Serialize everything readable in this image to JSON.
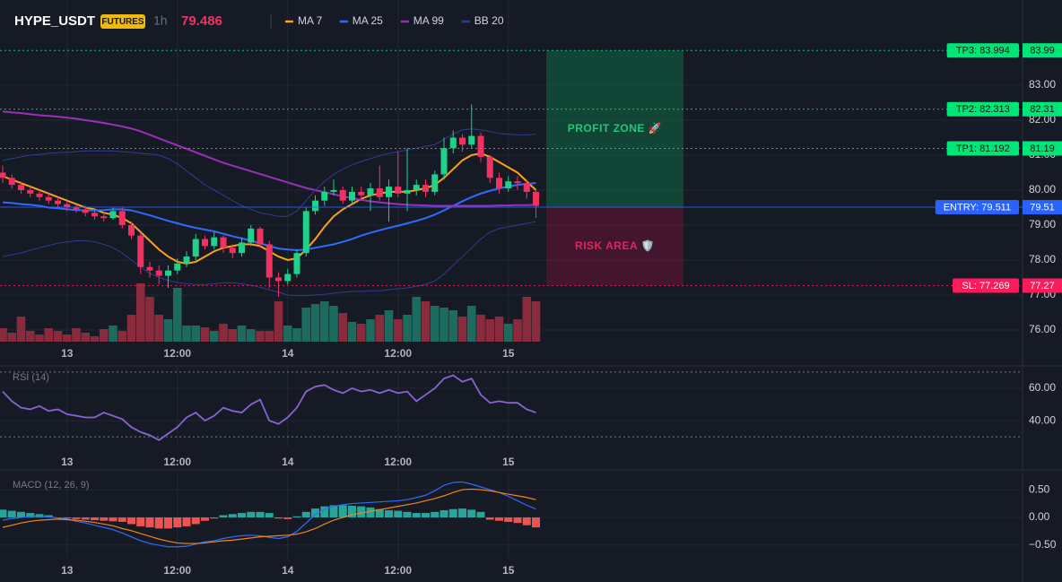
{
  "header": {
    "symbol": "HYPE_USDT",
    "badge": "FUTURES",
    "interval": "1h",
    "price": "79.486"
  },
  "chart_data": [
    {
      "type": "candlestick",
      "categories": [
        null,
        null,
        null,
        null,
        null,
        null,
        null,
        "13",
        null,
        null,
        null,
        null,
        null,
        null,
        null,
        null,
        null,
        null,
        null,
        "12:00",
        null,
        null,
        null,
        null,
        null,
        null,
        null,
        null,
        null,
        null,
        null,
        "14",
        null,
        null,
        null,
        null,
        null,
        null,
        null,
        null,
        null,
        null,
        null,
        "12:00",
        null,
        null,
        null,
        null,
        null,
        null,
        null,
        null,
        null,
        null,
        null,
        "15",
        null,
        null,
        null
      ],
      "open": [
        80.5,
        80.35,
        80.15,
        80.0,
        79.9,
        79.8,
        79.7,
        79.6,
        79.5,
        79.45,
        79.35,
        79.25,
        79.2,
        79.4,
        79.0,
        78.7,
        77.8,
        77.7,
        77.55,
        77.7,
        77.9,
        78.1,
        78.6,
        78.4,
        78.65,
        78.35,
        78.2,
        78.5,
        78.9,
        78.45,
        77.5,
        77.4,
        77.6,
        78.2,
        79.4,
        79.7,
        79.95,
        80.0,
        79.7,
        79.95,
        79.85,
        80.05,
        79.8,
        80.1,
        79.9,
        80.0,
        80.15,
        79.95,
        80.45,
        81.2,
        81.5,
        81.3,
        81.55,
        80.95,
        80.35,
        80.05,
        80.25,
        80.2,
        79.95
      ],
      "high": [
        80.7,
        80.45,
        80.25,
        80.1,
        80.0,
        79.9,
        79.8,
        79.7,
        79.6,
        79.55,
        79.45,
        79.35,
        79.5,
        79.5,
        79.1,
        78.8,
        77.95,
        77.85,
        77.85,
        78.05,
        78.25,
        78.75,
        78.7,
        78.8,
        78.7,
        78.45,
        78.65,
        79.0,
        78.95,
        78.55,
        77.65,
        77.75,
        78.3,
        79.5,
        79.85,
        80.1,
        80.3,
        80.1,
        80.1,
        80.1,
        80.2,
        80.7,
        80.3,
        81.1,
        81.2,
        80.3,
        80.3,
        80.55,
        81.5,
        81.7,
        81.6,
        82.45,
        81.65,
        81.0,
        80.5,
        80.4,
        80.4,
        80.3,
        80.05
      ],
      "low": [
        80.2,
        80.05,
        79.9,
        79.8,
        79.7,
        79.6,
        79.5,
        79.4,
        79.35,
        79.25,
        79.15,
        79.1,
        79.15,
        78.9,
        78.6,
        77.6,
        77.5,
        77.3,
        77.2,
        77.6,
        77.8,
        78.0,
        78.3,
        78.3,
        78.2,
        78.05,
        78.1,
        78.4,
        78.35,
        77.2,
        76.95,
        77.3,
        77.5,
        78.1,
        79.3,
        79.55,
        79.85,
        79.6,
        79.6,
        79.7,
        79.4,
        79.7,
        79.1,
        79.8,
        79.4,
        79.85,
        79.8,
        79.85,
        80.3,
        81.05,
        81.1,
        81.2,
        80.8,
        80.2,
        79.9,
        79.95,
        80.0,
        79.75,
        79.2
      ],
      "close": [
        80.35,
        80.15,
        80.0,
        79.9,
        79.8,
        79.7,
        79.6,
        79.5,
        79.45,
        79.35,
        79.25,
        79.2,
        79.4,
        79.0,
        78.7,
        77.8,
        77.7,
        77.55,
        77.7,
        77.9,
        78.1,
        78.6,
        78.4,
        78.65,
        78.35,
        78.2,
        78.5,
        78.9,
        78.45,
        77.5,
        77.4,
        77.6,
        78.2,
        79.4,
        79.7,
        79.95,
        80.0,
        79.7,
        79.95,
        79.85,
        80.05,
        79.8,
        80.1,
        79.9,
        80.0,
        80.15,
        79.95,
        80.45,
        81.2,
        81.5,
        81.3,
        81.55,
        80.95,
        80.35,
        80.05,
        80.25,
        80.2,
        79.95,
        79.55
      ],
      "volume": [
        15,
        10,
        28,
        12,
        8,
        15,
        12,
        8,
        15,
        10,
        6,
        14,
        18,
        12,
        30,
        65,
        50,
        30,
        25,
        60,
        18,
        18,
        16,
        12,
        20,
        14,
        18,
        14,
        12,
        12,
        45,
        18,
        15,
        38,
        42,
        45,
        40,
        32,
        22,
        20,
        25,
        30,
        35,
        25,
        30,
        50,
        45,
        40,
        38,
        35,
        28,
        40,
        30,
        25,
        28,
        20,
        25,
        50,
        45
      ],
      "up_color": "#1fd18a",
      "down_color": "#f23163",
      "volume_up_color": "#1d6a5f",
      "volume_down_color": "#8a2a3d",
      "series": [
        {
          "name": "MA 7",
          "color": "#f7a21b",
          "values": [
            80.4,
            80.3,
            80.2,
            80.1,
            80.0,
            79.9,
            79.8,
            79.7,
            79.6,
            79.5,
            79.45,
            79.35,
            79.3,
            79.2,
            79.05,
            78.8,
            78.55,
            78.3,
            78.1,
            77.95,
            77.9,
            77.95,
            78.1,
            78.25,
            78.35,
            78.4,
            78.45,
            78.45,
            78.4,
            78.25,
            78.1,
            78.0,
            78.05,
            78.3,
            78.6,
            78.95,
            79.25,
            79.45,
            79.6,
            79.75,
            79.85,
            79.9,
            79.95,
            79.95,
            79.95,
            80.0,
            80.05,
            80.15,
            80.35,
            80.6,
            80.85,
            81.0,
            81.05,
            80.95,
            80.8,
            80.65,
            80.5,
            80.25,
            80.0
          ]
        },
        {
          "name": "MA 25",
          "color": "#2f6bff",
          "values": [
            79.65,
            79.63,
            79.6,
            79.58,
            79.55,
            79.5,
            79.48,
            79.45,
            79.43,
            79.42,
            79.42,
            79.43,
            79.45,
            79.45,
            79.42,
            79.35,
            79.28,
            79.2,
            79.12,
            79.05,
            78.98,
            78.92,
            78.87,
            78.82,
            78.75,
            78.68,
            78.62,
            78.55,
            78.48,
            78.4,
            78.33,
            78.3,
            78.28,
            78.3,
            78.35,
            78.4,
            78.45,
            78.52,
            78.6,
            78.7,
            78.78,
            78.85,
            78.92,
            78.98,
            79.05,
            79.12,
            79.2,
            79.3,
            79.42,
            79.55,
            79.68,
            79.8,
            79.9,
            79.98,
            80.05,
            80.1,
            80.15,
            80.18,
            80.2
          ]
        },
        {
          "name": "MA 99",
          "color": "#9c2fb8",
          "values": [
            82.25,
            82.22,
            82.2,
            82.17,
            82.14,
            82.12,
            82.1,
            82.07,
            82.04,
            82.0,
            81.96,
            81.92,
            81.87,
            81.82,
            81.76,
            81.68,
            81.58,
            81.48,
            81.38,
            81.28,
            81.18,
            81.08,
            80.98,
            80.88,
            80.78,
            80.7,
            80.62,
            80.54,
            80.46,
            80.38,
            80.3,
            80.22,
            80.14,
            80.06,
            80.0,
            79.94,
            79.88,
            79.82,
            79.77,
            79.72,
            79.68,
            79.65,
            79.62,
            79.6,
            79.58,
            79.57,
            79.56,
            79.55,
            79.55,
            79.55,
            79.55,
            79.55,
            79.55,
            79.55,
            79.56,
            79.56,
            79.57,
            79.57,
            79.58
          ]
        },
        {
          "name": "BB 20",
          "color": "#2b3f92",
          "values": [
            80.85,
            80.9,
            80.95,
            81.0,
            81.02,
            81.05,
            81.07,
            81.08,
            81.1,
            81.12,
            81.12,
            81.12,
            81.12,
            81.1,
            81.08,
            81.05,
            81.03,
            81.0,
            80.9,
            80.75,
            80.55,
            80.35,
            80.15,
            80.0,
            79.85,
            79.7,
            79.55,
            79.45,
            79.35,
            79.3,
            79.25,
            79.25,
            79.4,
            79.7,
            80.0,
            80.25,
            80.45,
            80.6,
            80.72,
            80.82,
            80.9,
            80.98,
            81.05,
            81.1,
            81.15,
            81.2,
            81.25,
            81.3,
            81.45,
            81.6,
            81.72,
            81.75,
            81.72,
            81.68,
            81.62,
            81.6,
            81.58,
            81.58,
            81.6
          ],
          "lower": [
            78.1,
            78.15,
            78.2,
            78.28,
            78.35,
            78.42,
            78.48,
            78.52,
            78.55,
            78.55,
            78.52,
            78.45,
            78.35,
            78.2,
            78.0,
            77.8,
            77.62,
            77.5,
            77.42,
            77.36,
            77.32,
            77.3,
            77.3,
            77.32,
            77.35,
            77.35,
            77.32,
            77.28,
            77.22,
            77.15,
            77.08,
            77.0,
            76.98,
            76.98,
            77.0,
            77.02,
            77.05,
            77.08,
            77.1,
            77.1,
            77.12,
            77.12,
            77.15,
            77.18,
            77.2,
            77.25,
            77.3,
            77.4,
            77.6,
            77.85,
            78.1,
            78.35,
            78.6,
            78.8,
            78.9,
            78.95,
            79.0,
            79.05,
            79.1
          ]
        }
      ],
      "ylim": [
        75.64,
        84.41
      ],
      "yticks": [
        {
          "value": 76,
          "label": "76.00"
        },
        {
          "value": 77,
          "label": "77.00"
        },
        {
          "value": 78,
          "label": "78.00"
        },
        {
          "value": 79,
          "label": "79.00"
        },
        {
          "value": 80,
          "label": "80.00"
        },
        {
          "value": 81,
          "label": "81.00"
        },
        {
          "value": 82,
          "label": "82.00"
        },
        {
          "value": 83,
          "label": "83.00"
        }
      ],
      "grid": true,
      "levels": [
        {
          "label": "TP3: 83.994",
          "value": 83.994,
          "axis_label": "83.99",
          "color": "#00e676",
          "text_color": "#0b1a12",
          "dashed": true
        },
        {
          "label": "TP2: 82.313",
          "value": 82.313,
          "axis_label": "82.31",
          "color": "#00e676",
          "text_color": "#0b1a12",
          "dashed": true
        },
        {
          "label": "TP1: 81.192",
          "value": 81.192,
          "axis_label": "81.19",
          "color": "#00e676",
          "text_color": "#0b1a12",
          "dashed": true
        },
        {
          "label": "ENTRY: 79.511",
          "value": 79.511,
          "axis_label": "79.51",
          "color": "#2962ff",
          "text_color": "#ffffff",
          "dashed": false
        },
        {
          "label": "SL: 77.269",
          "value": 77.269,
          "axis_label": "77.27",
          "color": "#ff1a5a",
          "text_color": "#ffffff",
          "dashed": true
        }
      ],
      "zones": [
        {
          "label": "PROFIT ZONE 🚀",
          "color": "#0f6b46",
          "text_color": "#22c77a"
        },
        {
          "label": "RISK AREA 🛡️",
          "color": "#6b1436",
          "text_color": "#e0245e"
        }
      ]
    },
    {
      "type": "line",
      "title": "RSI (14)",
      "values": [
        58,
        52,
        48,
        47,
        49,
        46,
        47,
        44,
        43,
        42,
        42,
        45,
        43,
        41,
        36,
        33,
        31,
        28,
        32,
        36,
        42,
        45,
        40,
        43,
        48,
        46,
        45,
        50,
        53,
        40,
        38,
        42,
        48,
        58,
        61,
        62,
        59,
        57,
        60,
        58,
        59,
        57,
        59,
        57,
        58,
        52,
        56,
        60,
        66,
        68,
        64,
        66,
        56,
        51,
        52,
        51,
        51,
        47,
        45
      ],
      "color": "#8a63d2",
      "ylim": [
        24,
        72.7
      ],
      "yticks": [
        {
          "value": 40,
          "label": "40.00"
        },
        {
          "value": 60,
          "label": "60.00"
        }
      ],
      "bands": [
        30,
        70
      ]
    },
    {
      "type": "macd",
      "title": "MACD (12, 26, 9)",
      "values": [
        0.14,
        0.12,
        0.1,
        0.08,
        0.06,
        0.04,
        0.0,
        -0.02,
        -0.03,
        -0.04,
        -0.05,
        -0.06,
        -0.07,
        -0.08,
        -0.12,
        -0.16,
        -0.18,
        -0.2,
        -0.2,
        -0.18,
        -0.16,
        -0.12,
        -0.06,
        -0.02,
        0.04,
        0.06,
        0.08,
        0.1,
        0.1,
        0.08,
        -0.02,
        -0.03,
        0.02,
        0.1,
        0.16,
        0.2,
        0.22,
        0.22,
        0.21,
        0.2,
        0.18,
        0.15,
        0.13,
        0.12,
        0.1,
        0.08,
        0.08,
        0.1,
        0.13,
        0.15,
        0.16,
        0.14,
        0.1,
        -0.04,
        -0.06,
        -0.08,
        -0.1,
        -0.14,
        -0.18
      ],
      "macd": [
        -0.05,
        -0.02,
        0.0,
        0.02,
        0.02,
        0.01,
        -0.01,
        -0.03,
        -0.07,
        -0.1,
        -0.14,
        -0.18,
        -0.22,
        -0.28,
        -0.35,
        -0.42,
        -0.47,
        -0.5,
        -0.53,
        -0.53,
        -0.52,
        -0.48,
        -0.44,
        -0.42,
        -0.38,
        -0.35,
        -0.33,
        -0.32,
        -0.33,
        -0.36,
        -0.38,
        -0.35,
        -0.25,
        -0.1,
        0.05,
        0.15,
        0.2,
        0.23,
        0.25,
        0.26,
        0.27,
        0.28,
        0.29,
        0.3,
        0.32,
        0.36,
        0.4,
        0.48,
        0.58,
        0.63,
        0.64,
        0.6,
        0.55,
        0.5,
        0.45,
        0.38,
        0.3,
        0.22,
        0.15
      ],
      "signal": [
        -0.18,
        -0.14,
        -0.1,
        -0.07,
        -0.05,
        -0.04,
        -0.03,
        -0.04,
        -0.05,
        -0.07,
        -0.09,
        -0.12,
        -0.15,
        -0.2,
        -0.24,
        -0.29,
        -0.34,
        -0.39,
        -0.43,
        -0.46,
        -0.47,
        -0.47,
        -0.46,
        -0.44,
        -0.42,
        -0.41,
        -0.39,
        -0.37,
        -0.35,
        -0.34,
        -0.33,
        -0.32,
        -0.3,
        -0.26,
        -0.2,
        -0.12,
        -0.05,
        0.0,
        0.05,
        0.08,
        0.11,
        0.14,
        0.17,
        0.2,
        0.23,
        0.26,
        0.3,
        0.34,
        0.39,
        0.45,
        0.5,
        0.51,
        0.5,
        0.48,
        0.45,
        0.42,
        0.39,
        0.36,
        0.32
      ],
      "macd_color": "#2f6bff",
      "signal_color": "#f0861b",
      "up_color": "#26a69a",
      "down_color": "#ef5350",
      "ylim": [
        -0.76,
        0.76
      ],
      "yticks": [
        {
          "value": 0.5,
          "label": "0.50"
        },
        {
          "value": 0,
          "label": "0.00"
        },
        {
          "value": -0.5,
          "label": "−0.50"
        }
      ]
    }
  ]
}
